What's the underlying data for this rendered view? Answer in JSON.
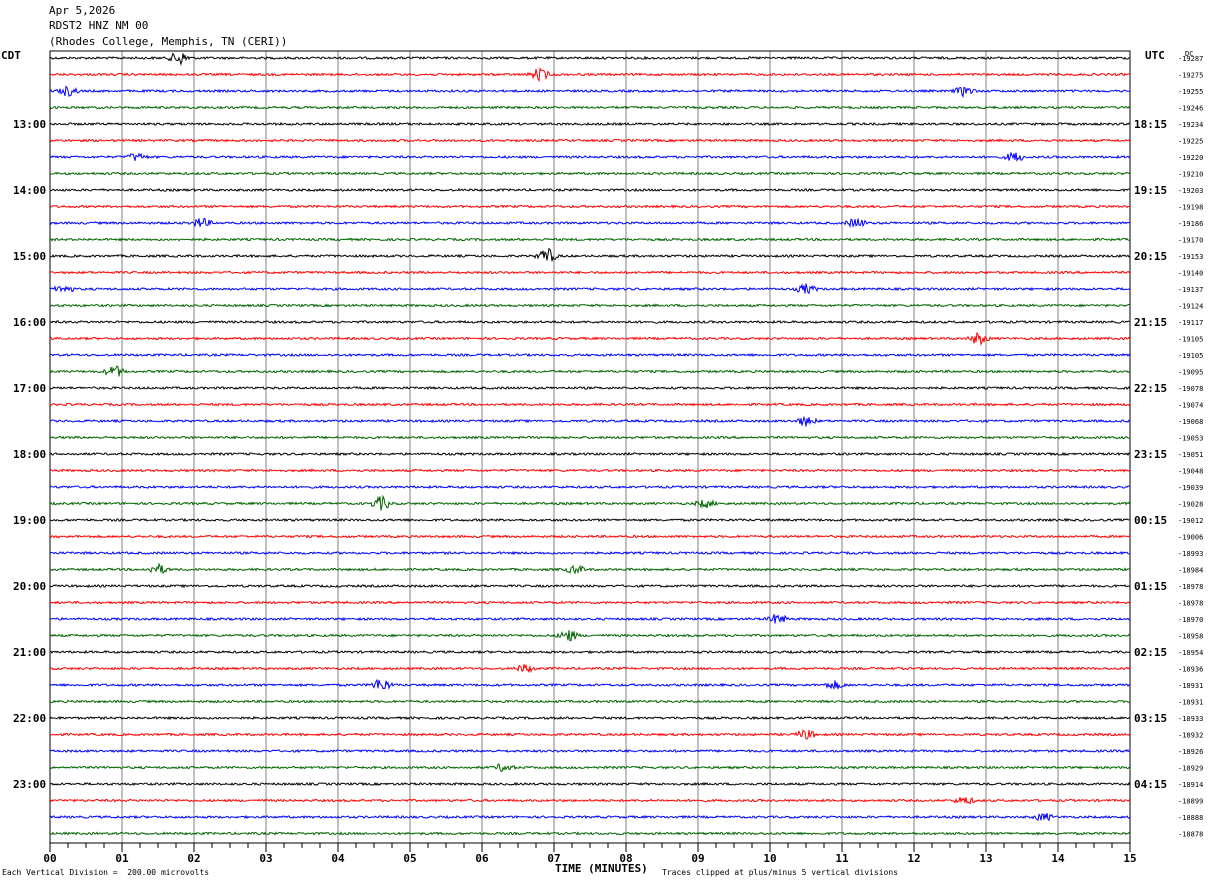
{
  "header": {
    "date": "Apr 5,2026",
    "station": "RDST2 HNZ NM 00",
    "site": "(Rhodes College, Memphis, TN (CERI))"
  },
  "left_timezone": "CDT",
  "right_timezone": "UTC",
  "dc_label": "DC",
  "footer": {
    "scale_note": "Each Vertical Division =  200.00 microvolts",
    "xlabel": "TIME (MINUTES)",
    "clip_note": "Traces clipped at plus/minus 5 vertical divisions"
  },
  "colors": {
    "trace_cycle": [
      "#000000",
      "#ff0000",
      "#0000ff",
      "#006400"
    ],
    "grid": "#808080",
    "frame": "#000000"
  },
  "chart_data": {
    "type": "line",
    "title": "",
    "xlabel": "TIME (MINUTES)",
    "x_ticks": [
      "00",
      "01",
      "02",
      "03",
      "04",
      "05",
      "06",
      "07",
      "08",
      "09",
      "10",
      "11",
      "12",
      "13",
      "14",
      "15"
    ],
    "xlim": [
      0,
      15
    ],
    "rows": 48,
    "row_minutes": 15,
    "left_hour_labels": [
      "13:00",
      "14:00",
      "15:00",
      "16:00",
      "17:00",
      "18:00",
      "19:00",
      "20:00",
      "21:00",
      "22:00",
      "23:00"
    ],
    "right_hour_labels": [
      "18:15",
      "19:15",
      "20:15",
      "21:15",
      "22:15",
      "23:15",
      "00:15",
      "01:15",
      "02:15",
      "03:15",
      "04:15"
    ],
    "dc_offsets": [
      "-19287",
      "-19275",
      "-19255",
      "-19246",
      "-19234",
      "-19225",
      "-19220",
      "-19210",
      "-19203",
      "-19198",
      "-19186",
      "-19170",
      "-19153",
      "-19140",
      "-19137",
      "-19124",
      "-19117",
      "-19105",
      "-19105",
      "-19095",
      "-19078",
      "-19074",
      "-19068",
      "-19053",
      "-19051",
      "-19048",
      "-19039",
      "-19028",
      "-19012",
      "-19006",
      "-18993",
      "-18984",
      "-18978",
      "-18978",
      "-18970",
      "-18958",
      "-18954",
      "-18936",
      "-18931",
      "-18931",
      "-18933",
      "-18932",
      "-18926",
      "-18929",
      "-18914",
      "-18899",
      "-18888",
      "-18878"
    ],
    "events": [
      {
        "row": 0,
        "minute": 1.8,
        "amp": 7
      },
      {
        "row": 1,
        "minute": 6.8,
        "amp": 6
      },
      {
        "row": 2,
        "minute": 0.25,
        "amp": 5
      },
      {
        "row": 2,
        "minute": 12.7,
        "amp": 5
      },
      {
        "row": 6,
        "minute": 1.2,
        "amp": 4
      },
      {
        "row": 6,
        "minute": 13.4,
        "amp": 5
      },
      {
        "row": 10,
        "minute": 2.1,
        "amp": 5
      },
      {
        "row": 10,
        "minute": 11.2,
        "amp": 5
      },
      {
        "row": 12,
        "minute": 6.9,
        "amp": 8
      },
      {
        "row": 14,
        "minute": 0.2,
        "amp": 4
      },
      {
        "row": 14,
        "minute": 10.5,
        "amp": 5
      },
      {
        "row": 17,
        "minute": 12.9,
        "amp": 6
      },
      {
        "row": 19,
        "minute": 0.9,
        "amp": 6
      },
      {
        "row": 22,
        "minute": 10.5,
        "amp": 5
      },
      {
        "row": 27,
        "minute": 4.6,
        "amp": 7
      },
      {
        "row": 27,
        "minute": 9.1,
        "amp": 4
      },
      {
        "row": 31,
        "minute": 1.5,
        "amp": 5
      },
      {
        "row": 31,
        "minute": 7.3,
        "amp": 4
      },
      {
        "row": 34,
        "minute": 10.1,
        "amp": 5
      },
      {
        "row": 35,
        "minute": 7.2,
        "amp": 6
      },
      {
        "row": 37,
        "minute": 6.6,
        "amp": 4
      },
      {
        "row": 38,
        "minute": 4.6,
        "amp": 7
      },
      {
        "row": 38,
        "minute": 10.9,
        "amp": 4
      },
      {
        "row": 41,
        "minute": 10.5,
        "amp": 5
      },
      {
        "row": 43,
        "minute": 6.3,
        "amp": 4
      },
      {
        "row": 45,
        "minute": 12.7,
        "amp": 4
      },
      {
        "row": 46,
        "minute": 13.8,
        "amp": 4
      }
    ]
  }
}
